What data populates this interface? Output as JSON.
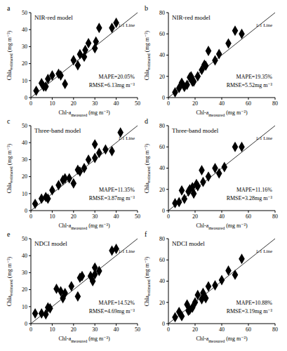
{
  "chart_data": [
    {
      "type": "scatter",
      "panel": "a",
      "title": "NIR-red model",
      "xlabel": "Chl-a measured (mg m⁻³)",
      "ylabel": "Chla estimated (mg m⁻³)",
      "x": [
        2.5,
        5,
        6,
        7,
        8,
        10,
        13,
        14,
        16,
        20,
        22,
        23,
        25,
        25.5,
        27,
        30,
        30.5,
        32,
        38,
        40
      ],
      "values": [
        4,
        8.5,
        6.5,
        6.5,
        11,
        13,
        14,
        13,
        8,
        22,
        19,
        25.5,
        24,
        28,
        32,
        29,
        33,
        41,
        41,
        44
      ],
      "xlim": [
        0,
        50
      ],
      "ylim": [
        0,
        50
      ],
      "xticks": [
        0,
        10,
        20,
        30,
        40,
        50
      ],
      "yticks": [
        0,
        10,
        20,
        30,
        40,
        50
      ],
      "annotations": [
        "1:1 Line",
        "MAPE=20.05%",
        "RMSE=6.13mg m⁻³"
      ],
      "color": "#000000",
      "marker": "diamond",
      "grid": false
    },
    {
      "type": "scatter",
      "panel": "b",
      "title": "NIR-red model",
      "xlabel": "Chl-a measured (mg m⁻³)",
      "ylabel": "Chla estimated (mg m⁻³)",
      "x": [
        5,
        8,
        10,
        12,
        14,
        16,
        17,
        18,
        19,
        22,
        25,
        27,
        28,
        30,
        35,
        38,
        45,
        50,
        55
      ],
      "values": [
        5,
        9,
        14,
        10,
        12,
        19,
        20,
        15,
        15,
        20,
        26,
        31,
        30,
        44,
        35,
        41,
        51,
        63,
        60
      ],
      "xlim": [
        0,
        80
      ],
      "ylim": [
        0,
        80
      ],
      "xticks": [
        0,
        20,
        40,
        60,
        80
      ],
      "yticks": [
        0,
        20,
        40,
        60,
        80
      ],
      "annotations": [
        "1:1 Line",
        "MAPE=19.35%",
        "RMSE=5.52mg m⁻³"
      ],
      "color": "#000000",
      "marker": "diamond",
      "grid": false
    },
    {
      "type": "scatter",
      "panel": "c",
      "title": "Three-band model",
      "xlabel": "Chl-a measured (mg m⁻³)",
      "ylabel": "Chla estimated (mg m⁻³)",
      "x": [
        2,
        5,
        7,
        8,
        10,
        13,
        15,
        16,
        18,
        20,
        22,
        23,
        25,
        27,
        30,
        30,
        32,
        35,
        38,
        42
      ],
      "values": [
        4,
        7,
        8,
        7,
        12,
        15,
        18,
        19,
        19,
        16,
        24,
        23,
        25,
        30,
        31,
        39,
        34,
        36,
        35,
        46
      ],
      "xlim": [
        0,
        50
      ],
      "ylim": [
        0,
        50
      ],
      "xticks": [
        0,
        10,
        20,
        30,
        40,
        50
      ],
      "yticks": [
        0,
        10,
        20,
        30,
        40,
        50
      ],
      "annotations": [
        "1:1 Line",
        "MAPE=11.35%",
        "RMSE=3.87mg m⁻³"
      ],
      "color": "#000000",
      "marker": "diamond",
      "grid": false
    },
    {
      "type": "scatter",
      "panel": "d",
      "title": "Three-band model",
      "xlabel": "Chl-a measured (mg m⁻³)",
      "ylabel": "Chla estimated (mg m⁻³)",
      "x": [
        5,
        8,
        10,
        12,
        15,
        16,
        18,
        19,
        21,
        22,
        25,
        26,
        30,
        35,
        38,
        42,
        50,
        55
      ],
      "values": [
        7,
        8,
        19,
        11,
        18,
        20,
        22,
        16,
        25,
        23,
        38,
        27,
        32,
        40,
        35,
        41,
        60,
        60
      ],
      "xlim": [
        0,
        80
      ],
      "ylim": [
        0,
        80
      ],
      "xticks": [
        0,
        20,
        40,
        60,
        80
      ],
      "yticks": [
        0,
        20,
        40,
        60,
        80
      ],
      "annotations": [
        "1:1 Line",
        "MAPE=11.16%",
        "RMSE=3.28mg m⁻³"
      ],
      "color": "#000000",
      "marker": "diamond",
      "grid": false
    },
    {
      "type": "scatter",
      "panel": "e",
      "title": "NDCI model",
      "xlabel": "Chl-a measured (mg m⁻³)",
      "ylabel": "Chla estimated (mg m⁻³)",
      "x": [
        2,
        5,
        7,
        8,
        9,
        12,
        14,
        15,
        16,
        19,
        22,
        23,
        24,
        28,
        29,
        30,
        30,
        32,
        38,
        40
      ],
      "values": [
        6,
        6,
        5.5,
        9.5,
        9,
        20.5,
        19,
        15,
        18,
        22,
        16,
        27,
        28,
        28,
        25,
        29,
        33,
        31,
        43,
        44
      ],
      "xlim": [
        0,
        50
      ],
      "ylim": [
        0,
        50
      ],
      "xticks": [
        0,
        10,
        20,
        30,
        40,
        50
      ],
      "yticks": [
        0,
        10,
        20,
        30,
        40,
        50
      ],
      "annotations": [
        "1:1 Line",
        "MAPE=14.52%",
        "RMSE=4.69mg m⁻³"
      ],
      "color": "#000000",
      "marker": "diamond",
      "grid": false
    },
    {
      "type": "scatter",
      "panel": "f",
      "title": "NDCI model",
      "xlabel": "Chl-a measured (mg m⁻³)",
      "ylabel": "Chla estimated (mg m⁻³)",
      "x": [
        5,
        8,
        10,
        14,
        15,
        16,
        18,
        20,
        22,
        25,
        26,
        28,
        30,
        35,
        40,
        45,
        50,
        55
      ],
      "values": [
        6,
        11,
        7,
        18,
        12,
        13,
        15,
        20,
        27,
        23,
        29,
        24,
        35,
        36,
        41,
        50,
        46,
        61
      ],
      "xlim": [
        0,
        80
      ],
      "ylim": [
        0,
        80
      ],
      "xticks": [
        0,
        20,
        40,
        60,
        80
      ],
      "yticks": [
        0,
        20,
        40,
        60,
        80
      ],
      "annotations": [
        "1:1 Line",
        "MAPE=10.88%",
        "RMSE=3.19mg m⁻³"
      ],
      "color": "#000000",
      "marker": "diamond",
      "grid": false
    }
  ]
}
